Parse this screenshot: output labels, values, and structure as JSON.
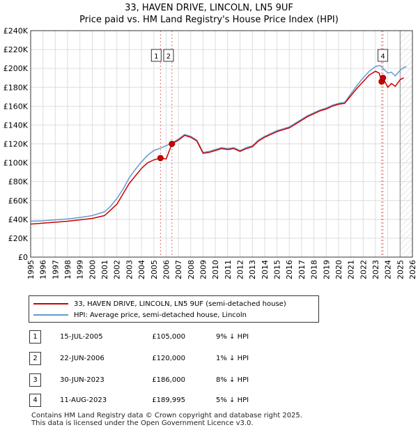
{
  "title": "33, HAVEN DRIVE, LINCOLN, LN5 9UF",
  "subtitle": "Price paid vs. HM Land Registry's House Price Index (HPI)",
  "chart_data": {
    "type": "line",
    "xlim": [
      1995,
      2026
    ],
    "ylim": [
      0,
      240000
    ],
    "x_ticks": [
      "1995",
      "1996",
      "1997",
      "1998",
      "1999",
      "2000",
      "2001",
      "2002",
      "2003",
      "2004",
      "2005",
      "2006",
      "2007",
      "2008",
      "2009",
      "2010",
      "2011",
      "2012",
      "2013",
      "2014",
      "2015",
      "2016",
      "2017",
      "2018",
      "2019",
      "2020",
      "2021",
      "2022",
      "2023",
      "2024",
      "2025",
      "2026"
    ],
    "y_ticks": [
      {
        "value": 0,
        "label": "£0"
      },
      {
        "value": 20000,
        "label": "£20K"
      },
      {
        "value": 40000,
        "label": "£40K"
      },
      {
        "value": 60000,
        "label": "£60K"
      },
      {
        "value": 80000,
        "label": "£80K"
      },
      {
        "value": 100000,
        "label": "£100K"
      },
      {
        "value": 120000,
        "label": "£120K"
      },
      {
        "value": 140000,
        "label": "£140K"
      },
      {
        "value": 160000,
        "label": "£160K"
      },
      {
        "value": 180000,
        "label": "£180K"
      },
      {
        "value": 200000,
        "label": "£200K"
      },
      {
        "value": 220000,
        "label": "£220K"
      },
      {
        "value": 240000,
        "label": "£240K"
      }
    ],
    "forecast_start": 2025.0,
    "series": [
      {
        "name": "33, HAVEN DRIVE, LINCOLN, LN5 9UF (semi-detached house)",
        "color": "#cc0000",
        "points": [
          [
            1995.0,
            35000
          ],
          [
            1996.0,
            36000
          ],
          [
            1997.0,
            37000
          ],
          [
            1998.0,
            38000
          ],
          [
            1999.0,
            39500
          ],
          [
            2000.0,
            41000
          ],
          [
            2001.0,
            44000
          ],
          [
            2001.5,
            50000
          ],
          [
            2002.0,
            56000
          ],
          [
            2002.5,
            67000
          ],
          [
            2003.0,
            78000
          ],
          [
            2003.5,
            86000
          ],
          [
            2004.0,
            94000
          ],
          [
            2004.5,
            100000
          ],
          [
            2005.0,
            103000
          ],
          [
            2005.54,
            105000
          ],
          [
            2006.0,
            104000
          ],
          [
            2006.47,
            120000
          ],
          [
            2007.0,
            124000
          ],
          [
            2007.5,
            129000
          ],
          [
            2008.0,
            127000
          ],
          [
            2008.5,
            123000
          ],
          [
            2009.0,
            110000
          ],
          [
            2009.5,
            111000
          ],
          [
            2010.0,
            113000
          ],
          [
            2010.5,
            115000
          ],
          [
            2011.0,
            114000
          ],
          [
            2011.5,
            115000
          ],
          [
            2012.0,
            112000
          ],
          [
            2012.5,
            115000
          ],
          [
            2013.0,
            117000
          ],
          [
            2013.5,
            123000
          ],
          [
            2014.0,
            127000
          ],
          [
            2014.5,
            130000
          ],
          [
            2015.0,
            133000
          ],
          [
            2015.5,
            135000
          ],
          [
            2016.0,
            137000
          ],
          [
            2016.5,
            141000
          ],
          [
            2017.0,
            145000
          ],
          [
            2017.5,
            149000
          ],
          [
            2018.0,
            152000
          ],
          [
            2018.5,
            155000
          ],
          [
            2019.0,
            157000
          ],
          [
            2019.5,
            160000
          ],
          [
            2020.0,
            162000
          ],
          [
            2020.5,
            163000
          ],
          [
            2021.0,
            171000
          ],
          [
            2021.5,
            179000
          ],
          [
            2022.0,
            186000
          ],
          [
            2022.5,
            193000
          ],
          [
            2023.0,
            197000
          ],
          [
            2023.3,
            195000
          ],
          [
            2023.5,
            186000
          ],
          [
            2023.61,
            189995
          ],
          [
            2024.0,
            180000
          ],
          [
            2024.3,
            184000
          ],
          [
            2024.6,
            181000
          ],
          [
            2025.0,
            188000
          ],
          [
            2025.3,
            190000
          ]
        ]
      },
      {
        "name": "HPI: Average price, semi-detached house, Lincoln",
        "color": "#6699cc",
        "points": [
          [
            1995.0,
            38000
          ],
          [
            1996.0,
            38500
          ],
          [
            1997.0,
            39500
          ],
          [
            1998.0,
            40500
          ],
          [
            1999.0,
            42000
          ],
          [
            2000.0,
            44000
          ],
          [
            2001.0,
            48000
          ],
          [
            2001.5,
            54000
          ],
          [
            2002.0,
            62000
          ],
          [
            2002.5,
            72000
          ],
          [
            2003.0,
            84000
          ],
          [
            2003.5,
            93000
          ],
          [
            2004.0,
            101000
          ],
          [
            2004.5,
            108000
          ],
          [
            2005.0,
            113000
          ],
          [
            2005.54,
            115500
          ],
          [
            2006.0,
            118000
          ],
          [
            2006.47,
            121000
          ],
          [
            2007.0,
            125000
          ],
          [
            2007.5,
            130000
          ],
          [
            2008.0,
            128000
          ],
          [
            2008.5,
            124000
          ],
          [
            2009.0,
            111000
          ],
          [
            2009.5,
            112000
          ],
          [
            2010.0,
            114000
          ],
          [
            2010.5,
            116000
          ],
          [
            2011.0,
            115000
          ],
          [
            2011.5,
            116000
          ],
          [
            2012.0,
            113000
          ],
          [
            2012.5,
            116000
          ],
          [
            2013.0,
            118000
          ],
          [
            2013.5,
            124000
          ],
          [
            2014.0,
            128000
          ],
          [
            2014.5,
            131000
          ],
          [
            2015.0,
            134000
          ],
          [
            2015.5,
            136000
          ],
          [
            2016.0,
            138000
          ],
          [
            2016.5,
            142000
          ],
          [
            2017.0,
            146000
          ],
          [
            2017.5,
            150000
          ],
          [
            2018.0,
            153000
          ],
          [
            2018.5,
            156000
          ],
          [
            2019.0,
            158000
          ],
          [
            2019.5,
            161000
          ],
          [
            2020.0,
            163000
          ],
          [
            2020.5,
            164000
          ],
          [
            2021.0,
            173000
          ],
          [
            2021.5,
            182000
          ],
          [
            2022.0,
            190000
          ],
          [
            2022.5,
            197000
          ],
          [
            2023.0,
            202000
          ],
          [
            2023.3,
            203000
          ],
          [
            2023.5,
            202000
          ],
          [
            2023.61,
            200000
          ],
          [
            2024.0,
            195000
          ],
          [
            2024.3,
            196000
          ],
          [
            2024.6,
            192000
          ],
          [
            2025.0,
            198000
          ],
          [
            2025.3,
            201000
          ],
          [
            2025.5,
            202000
          ]
        ]
      }
    ],
    "sales": [
      {
        "label": "1",
        "x": 2005.54,
        "y": 105000
      },
      {
        "label": "2",
        "x": 2006.47,
        "y": 120000
      },
      {
        "label": "3",
        "x": 2023.5,
        "y": 186000
      },
      {
        "label": "4",
        "x": 2023.61,
        "y": 189995
      }
    ],
    "top_markers": [
      {
        "label": "1",
        "x": 2005.2
      },
      {
        "label": "2",
        "x": 2006.2
      },
      {
        "label": "4",
        "x": 2023.6
      }
    ]
  },
  "legend": {
    "property_label": "33, HAVEN DRIVE, LINCOLN, LN5 9UF (semi-detached house)",
    "hpi_label": "HPI: Average price, semi-detached house, Lincoln"
  },
  "transactions": [
    {
      "num": "1",
      "date": "15-JUL-2005",
      "price": "£105,000",
      "hpi": "9% ↓ HPI"
    },
    {
      "num": "2",
      "date": "22-JUN-2006",
      "price": "£120,000",
      "hpi": "1% ↓ HPI"
    },
    {
      "num": "3",
      "date": "30-JUN-2023",
      "price": "£186,000",
      "hpi": "8% ↓ HPI"
    },
    {
      "num": "4",
      "date": "11-AUG-2023",
      "price": "£189,995",
      "hpi": "5% ↓ HPI"
    }
  ],
  "footer": {
    "line1": "Contains HM Land Registry data © Crown copyright and database right 2025.",
    "line2": "This data is licensed under the Open Government Licence v3.0."
  }
}
